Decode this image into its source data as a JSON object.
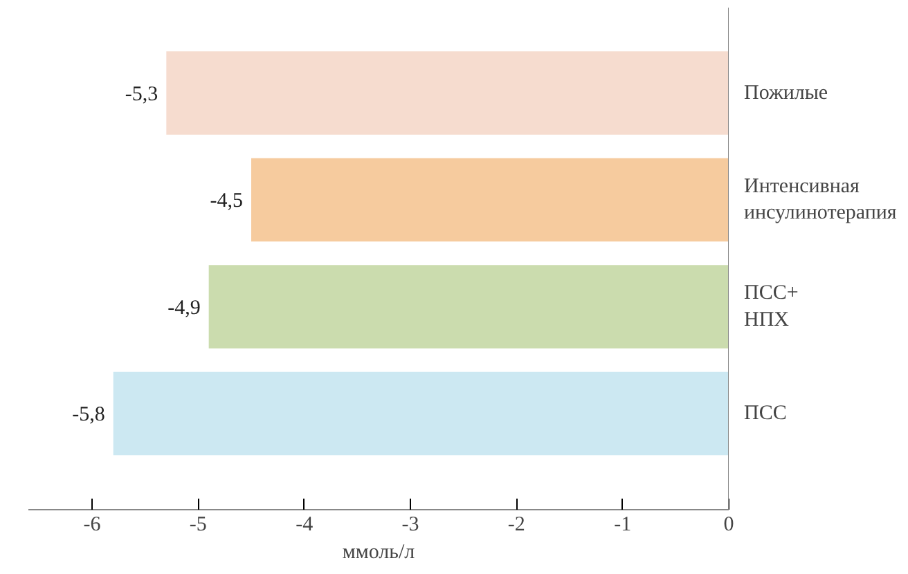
{
  "chart_data": {
    "type": "bar",
    "orientation": "horizontal",
    "xlabel": "ммоль/л",
    "categories": [
      "Пожилые",
      "Интенсивная\nинсулинотерапия",
      "ПСС+\nНПХ",
      "ПСС"
    ],
    "values": [
      -5.3,
      -4.5,
      -4.9,
      -5.8
    ],
    "value_labels": [
      "-5,3",
      "-4,5",
      "-4,9",
      "-5,8"
    ],
    "colors": [
      "#f6dccf",
      "#f6cb9e",
      "#cbdcae",
      "#cce8f2"
    ],
    "xlim": [
      -6.6,
      0
    ],
    "xticks": [
      -6,
      -5,
      -4,
      -3,
      -2,
      -1,
      0
    ],
    "grid": false
  }
}
